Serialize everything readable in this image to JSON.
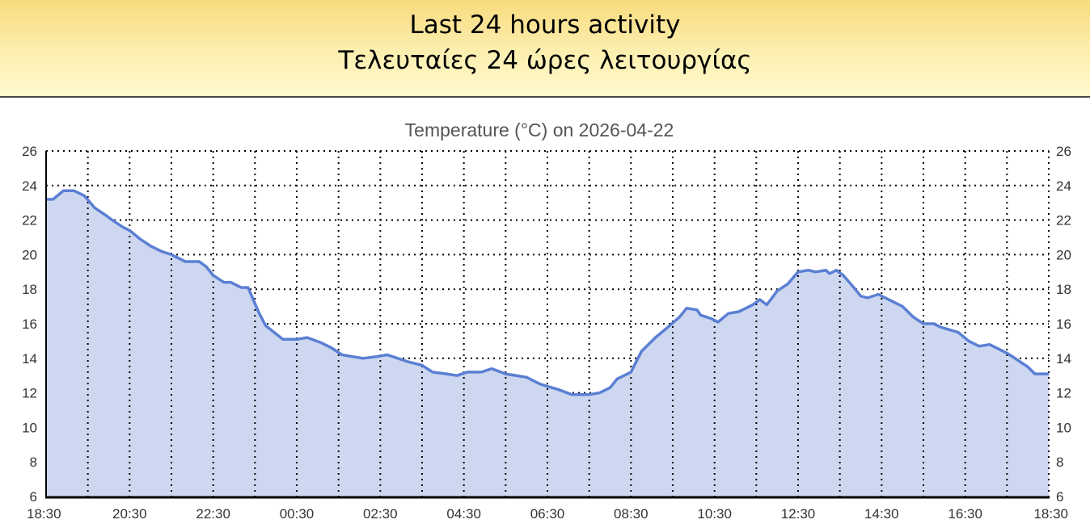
{
  "header": {
    "title_en": "Last 24 hours activity",
    "title_gr": "Τελευταίες 24 ώρες λειτουργίας"
  },
  "chart_data": {
    "type": "area",
    "title": "Temperature (°C) on 2026-04-22",
    "xlabel": "",
    "ylabel": "",
    "ylim": [
      6,
      26
    ],
    "yticks": [
      "6",
      "8",
      "10",
      "12",
      "14",
      "16",
      "18",
      "20",
      "22",
      "24",
      "26"
    ],
    "xticks": [
      "18:30",
      "20:30",
      "22:30",
      "00:30",
      "02:30",
      "04:30",
      "06:30",
      "08:30",
      "10:30",
      "12:30",
      "14:30",
      "16:30",
      "18:30"
    ],
    "xrange": [
      "18:30",
      "18:30 (+1 day)"
    ],
    "grid": true,
    "y_axis_both_sides": true,
    "line_color": "#5b7fd3",
    "fill_color": "#cdd8f0",
    "x": [
      "18:30",
      "18:40",
      "18:55",
      "19:10",
      "19:25",
      "19:40",
      "19:55",
      "20:05",
      "20:20",
      "20:30",
      "20:45",
      "21:00",
      "21:15",
      "21:30",
      "21:40",
      "21:50",
      "22:10",
      "22:20",
      "22:30",
      "22:45",
      "22:55",
      "23:10",
      "23:20",
      "23:35",
      "23:45",
      "00:10",
      "00:30",
      "00:45",
      "01:05",
      "01:20",
      "01:35",
      "01:50",
      "02:05",
      "02:25",
      "02:40",
      "02:55",
      "03:10",
      "03:30",
      "03:45",
      "04:05",
      "04:20",
      "04:35",
      "04:55",
      "05:10",
      "05:30",
      "06:00",
      "06:20",
      "06:45",
      "07:05",
      "07:30",
      "07:45",
      "08:00",
      "08:10",
      "08:30",
      "08:45",
      "09:05",
      "09:20",
      "09:40",
      "09:50",
      "10:05",
      "10:10",
      "10:25",
      "10:35",
      "10:50",
      "11:05",
      "11:25",
      "11:35",
      "11:45",
      "12:00",
      "12:15",
      "12:30",
      "12:45",
      "12:55",
      "13:10",
      "13:15",
      "13:25",
      "13:35",
      "13:50",
      "14:00",
      "14:10",
      "14:25",
      "14:40",
      "15:00",
      "15:15",
      "15:30",
      "15:45",
      "15:55",
      "16:20",
      "16:35",
      "16:50",
      "17:05",
      "17:15",
      "17:30",
      "17:45",
      "18:00",
      "18:10",
      "18:30"
    ],
    "values": [
      23.2,
      23.2,
      23.7,
      23.7,
      23.4,
      22.7,
      22.3,
      22.0,
      21.6,
      21.4,
      20.9,
      20.5,
      20.2,
      20.0,
      19.8,
      19.6,
      19.6,
      19.3,
      18.8,
      18.4,
      18.4,
      18.1,
      18.1,
      16.7,
      15.9,
      15.1,
      15.1,
      15.2,
      14.9,
      14.6,
      14.2,
      14.1,
      14.0,
      14.1,
      14.2,
      14.0,
      13.8,
      13.6,
      13.2,
      13.1,
      13.0,
      13.2,
      13.2,
      13.4,
      13.1,
      12.9,
      12.5,
      12.2,
      11.9,
      11.9,
      12.0,
      12.3,
      12.8,
      13.2,
      14.4,
      15.2,
      15.7,
      16.4,
      16.9,
      16.8,
      16.5,
      16.3,
      16.1,
      16.6,
      16.7,
      17.1,
      17.4,
      17.1,
      17.9,
      18.3,
      19.0,
      19.1,
      19.0,
      19.1,
      18.9,
      19.1,
      18.8,
      18.1,
      17.6,
      17.5,
      17.7,
      17.4,
      17.0,
      16.4,
      16.0,
      16.0,
      15.8,
      15.5,
      15.0,
      14.7,
      14.8,
      14.6,
      14.3,
      13.9,
      13.5,
      13.1,
      13.1
    ]
  }
}
